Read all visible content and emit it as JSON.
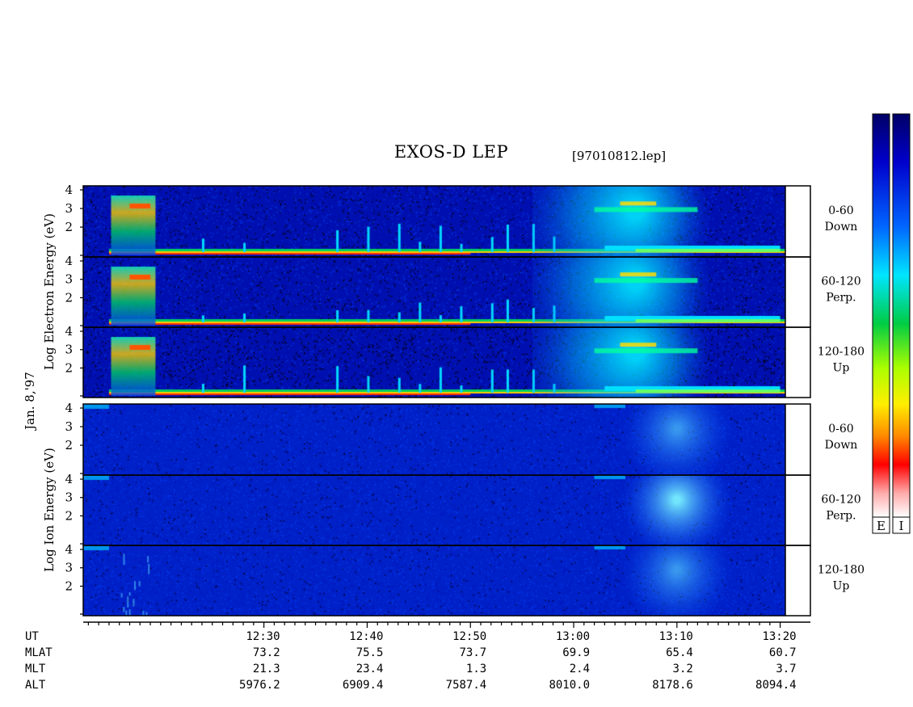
{
  "chart_data": {
    "type": "heatmap",
    "title": "EXOS-D LEP",
    "file": "[97010812.lep]",
    "date_label": "Jan. 8,'97",
    "electron": {
      "ylabel": "Log  Electron  Energy (eV)",
      "yticks": [
        "4",
        "3",
        "2"
      ],
      "panels": [
        {
          "angle": "0-60",
          "dir": "Down"
        },
        {
          "angle": "60-120",
          "dir": "Perp."
        },
        {
          "angle": "120-180",
          "dir": "Up"
        }
      ]
    },
    "ion": {
      "ylabel": "Log  Ion  Energy (eV)",
      "yticks": [
        "4",
        "3",
        "2"
      ],
      "panels": [
        {
          "angle": "0-60",
          "dir": "Down"
        },
        {
          "angle": "60-120",
          "dir": "Perp."
        },
        {
          "angle": "120-180",
          "dir": "Up"
        }
      ]
    },
    "colorbar_labels": [
      "E",
      "I"
    ],
    "table": {
      "row_labels": [
        "UT",
        "MLAT",
        "MLT",
        "ALT"
      ],
      "columns": [
        {
          "UT": "12:30",
          "MLAT": "73.2",
          "MLT": "21.3",
          "ALT": "5976.2"
        },
        {
          "UT": "12:40",
          "MLAT": "75.5",
          "MLT": "23.4",
          "ALT": "6909.4"
        },
        {
          "UT": "12:50",
          "MLAT": "73.7",
          "MLT": "1.3",
          "ALT": "7587.4"
        },
        {
          "UT": "13:00",
          "MLAT": "69.9",
          "MLT": "2.4",
          "ALT": "8010.0"
        },
        {
          "UT": "13:10",
          "MLAT": "65.4",
          "MLT": "3.2",
          "ALT": "8178.6"
        },
        {
          "UT": "13:20",
          "MLAT": "60.7",
          "MLT": "3.7",
          "ALT": "8094.4"
        }
      ]
    },
    "xrange_minutes": [
      12.5,
      80.5
    ],
    "major_tick_minutes": [
      30,
      40,
      50,
      60,
      70,
      80
    ]
  }
}
